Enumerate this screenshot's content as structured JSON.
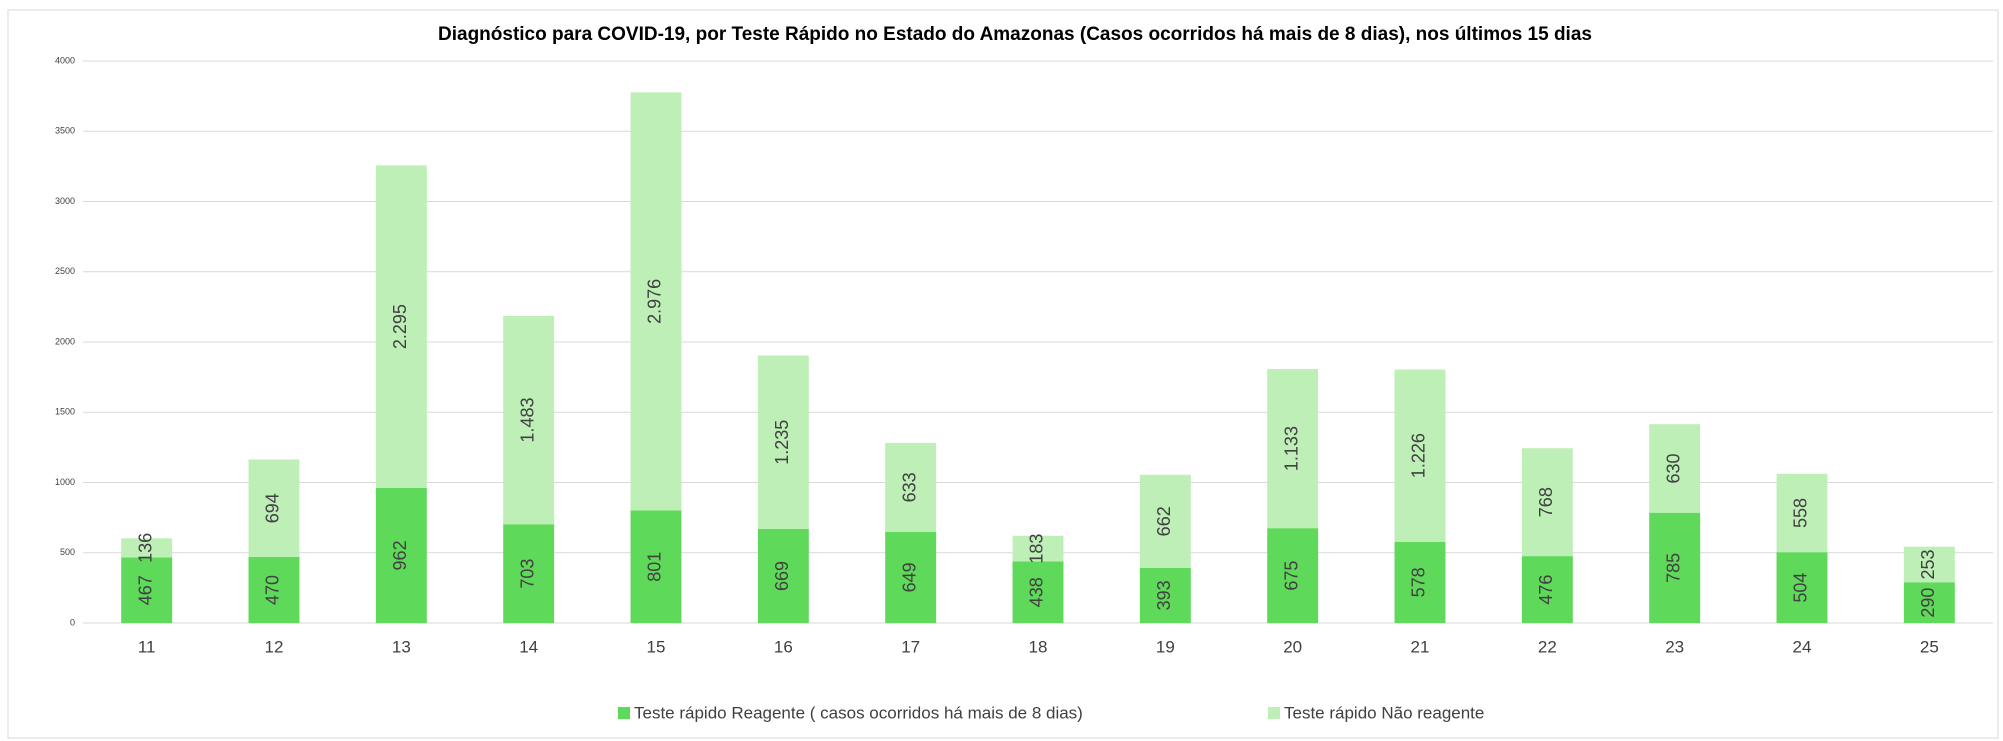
{
  "chart_data": {
    "type": "stacked_bar",
    "title": "Diagnóstico para COVID-19, por  Teste Rápido no Estado do Amazonas (Casos ocorridos há mais de 8 dias), nos últimos 15 dias",
    "categories": [
      "11",
      "12",
      "13",
      "14",
      "15",
      "16",
      "17",
      "18",
      "19",
      "20",
      "21",
      "22",
      "23",
      "24",
      "25"
    ],
    "series": [
      {
        "name": "Teste rápido Reagente ( casos ocorridos há mais de 8 dias)",
        "color": "#5fd95a",
        "values": [
          467,
          470,
          962,
          703,
          801,
          669,
          649,
          438,
          393,
          675,
          578,
          476,
          785,
          504,
          290
        ]
      },
      {
        "name": "Teste rápido Não reagente",
        "color": "#bdefb7",
        "values": [
          136,
          694,
          2295,
          1483,
          2976,
          1235,
          633,
          183,
          662,
          1133,
          1226,
          768,
          630,
          558,
          253
        ],
        "value_labels": [
          "136",
          "694",
          "2.295",
          "1.483",
          "2.976",
          "1.235",
          "633",
          "183",
          "662",
          "1.133",
          "1.226",
          "768",
          "630",
          "558",
          "253"
        ]
      }
    ],
    "ylim": [
      0,
      4000
    ],
    "yticks": [
      0,
      500,
      1000,
      1500,
      2000,
      2500,
      3000,
      3500,
      4000
    ],
    "grid": true,
    "legend": "bottom"
  }
}
